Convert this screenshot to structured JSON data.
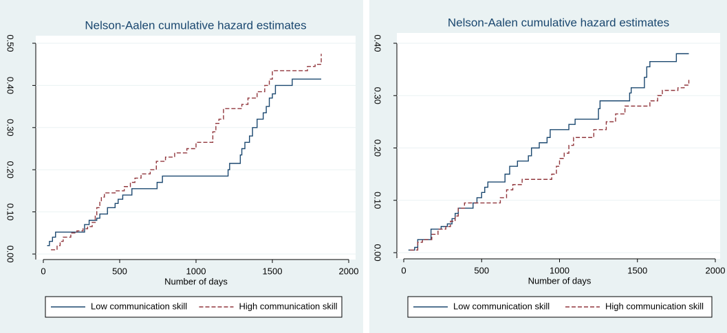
{
  "chart_data": [
    {
      "type": "line",
      "drawstyle": "steps-post",
      "title": "Nelson-Aalen cumulative hazard estimates",
      "x_label": "Number of days",
      "xlim": [
        0,
        2000
      ],
      "xticks": [
        0,
        500,
        1000,
        1500,
        2000
      ],
      "ylim": [
        0,
        0.5
      ],
      "yticks": [
        {
          "value": 0,
          "label": "0.00"
        },
        {
          "value": 0.1,
          "label": "0.10"
        },
        {
          "value": 0.2,
          "label": "0.20"
        },
        {
          "value": 0.3,
          "label": "0.30"
        },
        {
          "value": 0.4,
          "label": "0.40"
        },
        {
          "value": 0.5,
          "label": "0.50"
        }
      ],
      "grid": true,
      "legend": "bottom",
      "series": [
        {
          "name": "Low communication skill",
          "color": "#1a476f",
          "line_style": "solid",
          "x": [
            25,
            40,
            60,
            80,
            270,
            300,
            350,
            370,
            420,
            470,
            490,
            520,
            580,
            745,
            780,
            1210,
            1220,
            1290,
            1300,
            1320,
            1350,
            1370,
            1400,
            1440,
            1460,
            1480,
            1500,
            1520,
            1630,
            1820
          ],
          "values": [
            0.02,
            0.03,
            0.04,
            0.052,
            0.07,
            0.08,
            0.085,
            0.095,
            0.11,
            0.12,
            0.13,
            0.14,
            0.155,
            0.17,
            0.185,
            0.2,
            0.215,
            0.235,
            0.25,
            0.265,
            0.28,
            0.3,
            0.32,
            0.335,
            0.35,
            0.37,
            0.38,
            0.4,
            0.415,
            0.415
          ]
        },
        {
          "name": "High communication skill",
          "color": "#90353b",
          "line_style": "dashed",
          "x": [
            50,
            90,
            110,
            130,
            180,
            220,
            260,
            290,
            320,
            340,
            350,
            370,
            380,
            400,
            470,
            530,
            570,
            600,
            640,
            700,
            740,
            800,
            860,
            940,
            1000,
            1110,
            1130,
            1150,
            1180,
            1300,
            1340,
            1400,
            1450,
            1480,
            1500,
            1730,
            1780,
            1820
          ],
          "values": [
            0.01,
            0.02,
            0.03,
            0.04,
            0.05,
            0.055,
            0.06,
            0.065,
            0.075,
            0.09,
            0.11,
            0.125,
            0.135,
            0.145,
            0.15,
            0.16,
            0.17,
            0.18,
            0.19,
            0.2,
            0.22,
            0.23,
            0.24,
            0.25,
            0.265,
            0.29,
            0.31,
            0.32,
            0.345,
            0.355,
            0.37,
            0.385,
            0.4,
            0.415,
            0.435,
            0.445,
            0.45,
            0.475
          ]
        }
      ]
    },
    {
      "type": "line",
      "drawstyle": "steps-post",
      "title": "Nelson-Aalen cumulative hazard estimates",
      "x_label": "Number of days",
      "xlim": [
        0,
        2000
      ],
      "xticks": [
        0,
        500,
        1000,
        1500,
        2000
      ],
      "ylim": [
        0,
        0.4
      ],
      "yticks": [
        {
          "value": 0,
          "label": "0.00"
        },
        {
          "value": 0.1,
          "label": "0.10"
        },
        {
          "value": 0.2,
          "label": "0.20"
        },
        {
          "value": 0.3,
          "label": "0.30"
        },
        {
          "value": 0.4,
          "label": "0.40"
        }
      ],
      "grid": true,
      "legend": "bottom",
      "series": [
        {
          "name": "Low communication skill",
          "color": "#1a476f",
          "line_style": "solid",
          "x": [
            30,
            70,
            90,
            175,
            240,
            280,
            310,
            330,
            350,
            445,
            470,
            500,
            520,
            540,
            650,
            680,
            730,
            800,
            820,
            870,
            920,
            940,
            1060,
            1100,
            1250,
            1260,
            1450,
            1460,
            1545,
            1560,
            1580,
            1750,
            1830
          ],
          "values": [
            0.005,
            0.01,
            0.025,
            0.045,
            0.05,
            0.055,
            0.065,
            0.075,
            0.085,
            0.095,
            0.105,
            0.115,
            0.125,
            0.135,
            0.15,
            0.165,
            0.175,
            0.185,
            0.2,
            0.21,
            0.22,
            0.235,
            0.245,
            0.255,
            0.275,
            0.29,
            0.305,
            0.315,
            0.335,
            0.355,
            0.365,
            0.38,
            0.38
          ]
        },
        {
          "name": "High communication skill",
          "color": "#90353b",
          "line_style": "dashed",
          "x": [
            40,
            90,
            120,
            180,
            220,
            270,
            300,
            330,
            350,
            390,
            620,
            660,
            700,
            760,
            950,
            980,
            1000,
            1030,
            1060,
            1090,
            1220,
            1300,
            1360,
            1420,
            1580,
            1630,
            1660,
            1760,
            1800,
            1830
          ],
          "values": [
            0.005,
            0.02,
            0.025,
            0.035,
            0.045,
            0.05,
            0.06,
            0.07,
            0.085,
            0.095,
            0.105,
            0.12,
            0.13,
            0.14,
            0.15,
            0.165,
            0.18,
            0.19,
            0.205,
            0.22,
            0.235,
            0.25,
            0.265,
            0.28,
            0.29,
            0.3,
            0.31,
            0.315,
            0.32,
            0.33
          ]
        }
      ]
    }
  ]
}
